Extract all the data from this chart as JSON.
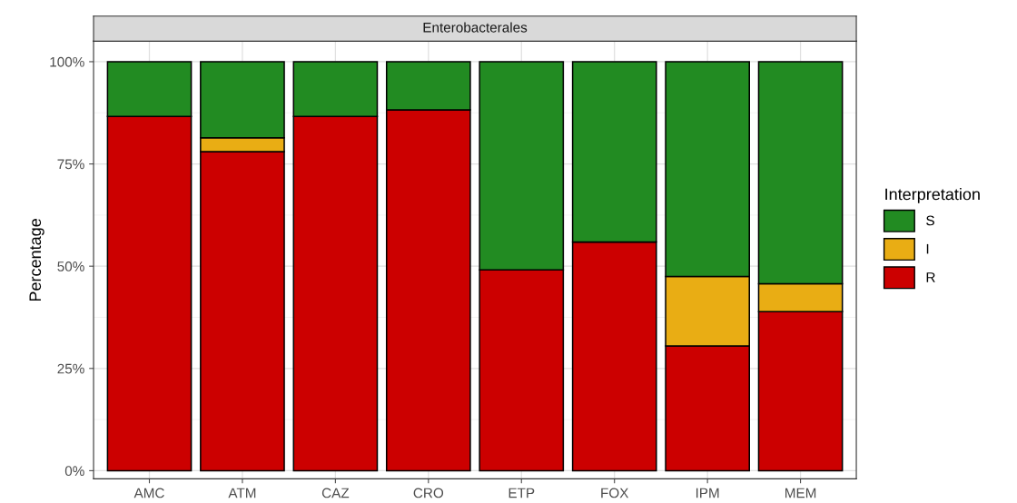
{
  "chart_data": {
    "type": "bar",
    "title": "Enterobacterales",
    "ylabel": "Percentage",
    "legend_title": "Interpretation",
    "stacked": true,
    "legend": "right",
    "grid": true,
    "categories": [
      "AMC",
      "ATM",
      "CAZ",
      "CRO",
      "ETP",
      "FOX",
      "IPM",
      "MEM"
    ],
    "series": [
      {
        "name": "R",
        "color": "#cc0000",
        "values": [
          86.6,
          78.0,
          86.6,
          88.2,
          49.1,
          55.9,
          30.5,
          38.9
        ]
      },
      {
        "name": "I",
        "color": "#e9ad14",
        "values": [
          0,
          3.4,
          0,
          0,
          0,
          0,
          17.0,
          6.8
        ]
      },
      {
        "name": "S",
        "color": "#228b22",
        "values": [
          13.4,
          18.6,
          13.4,
          11.8,
          50.9,
          44.1,
          52.5,
          54.3
        ]
      }
    ],
    "ylim": [
      -2,
      105
    ],
    "yticks": [
      {
        "value": 0,
        "label": "0%"
      },
      {
        "value": 25,
        "label": "25%"
      },
      {
        "value": 50,
        "label": "50%"
      },
      {
        "value": 75,
        "label": "75%"
      },
      {
        "value": 100,
        "label": "100%"
      }
    ]
  }
}
